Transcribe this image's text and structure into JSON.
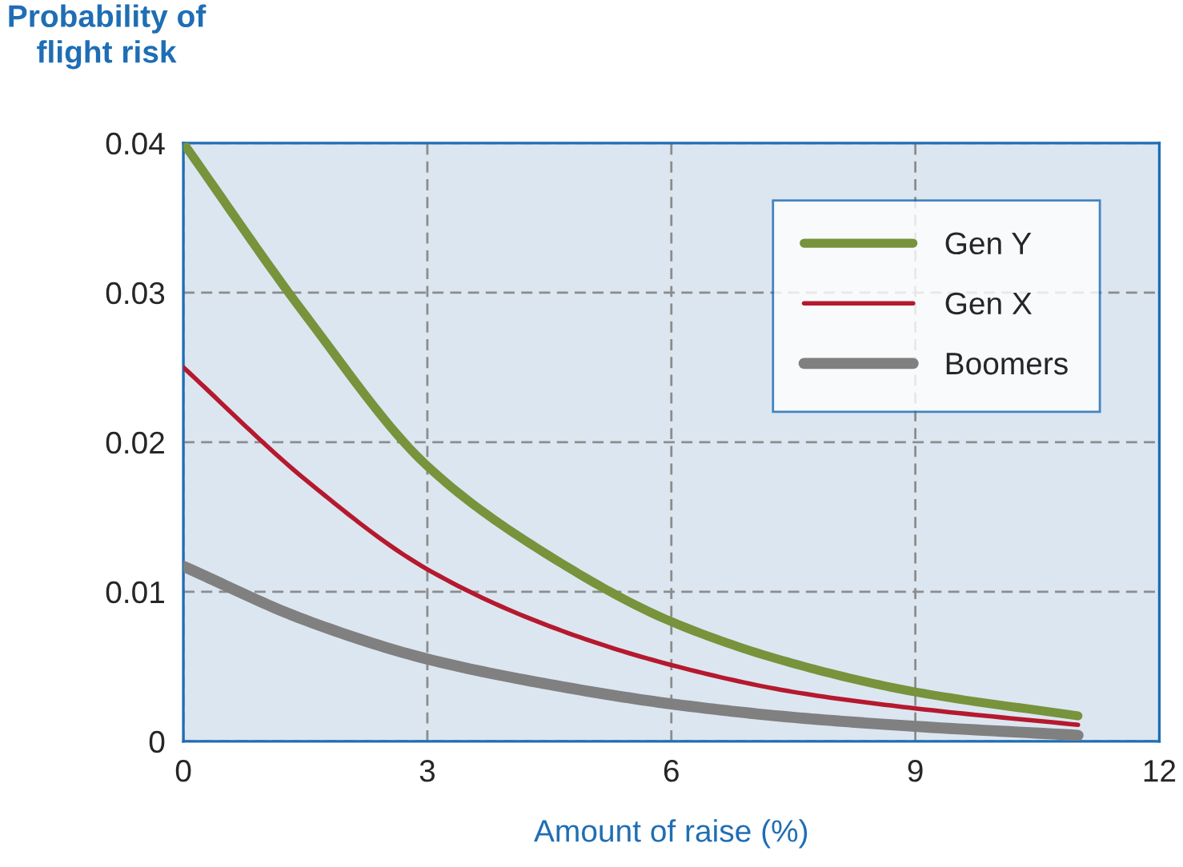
{
  "chart_data": {
    "type": "line",
    "xlabel": "Amount of raise (%)",
    "ylabel": "Probability of\nflight risk",
    "x": [
      0,
      1.5,
      3,
      4.5,
      6,
      7.5,
      9,
      11
    ],
    "series": [
      {
        "name": "Gen Y",
        "color": "#77933c",
        "values": [
          0.04,
          0.0285,
          0.0184,
          0.0124,
          0.008,
          0.0052,
          0.0033,
          0.0017
        ]
      },
      {
        "name": "Gen X",
        "color": "#b5192e",
        "values": [
          0.025,
          0.0175,
          0.0115,
          0.0077,
          0.0051,
          0.0033,
          0.0022,
          0.0011
        ]
      },
      {
        "name": "Boomers",
        "color": "#808080",
        "values": [
          0.0117,
          0.0081,
          0.0055,
          0.0038,
          0.0025,
          0.0016,
          0.001,
          0.0004
        ]
      }
    ],
    "xlim": [
      0,
      12
    ],
    "xticks": [
      0,
      3,
      6,
      9,
      12
    ],
    "ylim": [
      0,
      0.04
    ],
    "yticks": [
      {
        "value": 0,
        "label": "0"
      },
      0.01,
      0.02,
      0.03,
      0.04
    ],
    "grid": true,
    "legend": "top right",
    "marker": "none",
    "line_style": "solid"
  }
}
